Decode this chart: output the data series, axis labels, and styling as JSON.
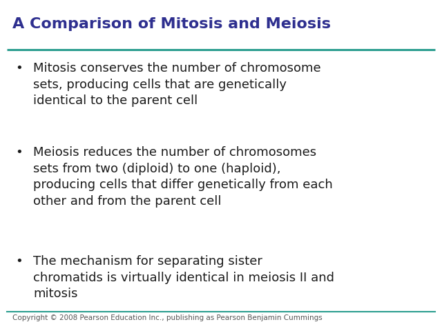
{
  "title": "A Comparison of Mitosis and Meiosis",
  "title_color": "#2e2f8f",
  "title_fontsize": 16,
  "background_color": "#ffffff",
  "line_color": "#2a9d8f",
  "text_color": "#1a1a1a",
  "text_fontsize": 13,
  "bullet_char": "•",
  "footer_text": "Copyright © 2008 Pearson Education Inc., publishing as Pearson Benjamin Cummings",
  "footer_fontsize": 7.5,
  "footer_color": "#555555",
  "bullets": [
    "Mitosis conserves the number of chromosome\nsets, producing cells that are genetically\nidentical to the parent cell",
    "Meiosis reduces the number of chromosomes\nsets from two (diploid) to one (haploid),\nproducing cells that differ genetically from each\nother and from the parent cell",
    "The mechanism for separating sister\nchromatids is virtually identical in meiosis II and\nmitosis"
  ]
}
